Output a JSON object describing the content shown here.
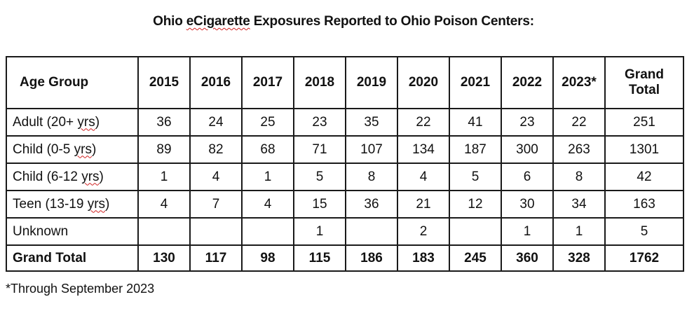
{
  "title": {
    "before": "Ohio ",
    "marked": "eCigarette",
    "after": " Exposures Reported to Ohio Poison Centers:"
  },
  "table": {
    "header": {
      "age_group": "Age Group",
      "years": [
        "2015",
        "2016",
        "2017",
        "2018",
        "2019",
        "2020",
        "2021",
        "2022",
        "2023*"
      ],
      "grand_total_line1": "Grand",
      "grand_total_line2": "Total"
    },
    "rows": [
      {
        "label_before": "Adult (20+ ",
        "label_marked": "yrs",
        "label_after": ")",
        "values": [
          "36",
          "24",
          "25",
          "23",
          "35",
          "22",
          "41",
          "23",
          "22"
        ],
        "total": "251"
      },
      {
        "label_before": "Child (0-5 ",
        "label_marked": "yrs",
        "label_after": ")",
        "values": [
          "89",
          "82",
          "68",
          "71",
          "107",
          "134",
          "187",
          "300",
          "263"
        ],
        "total": "1301"
      },
      {
        "label_before": "Child (6-12 ",
        "label_marked": "yrs",
        "label_after": ")",
        "values": [
          "1",
          "4",
          "1",
          "5",
          "8",
          "4",
          "5",
          "6",
          "8"
        ],
        "total": "42"
      },
      {
        "label_before": "Teen (13-19 ",
        "label_marked": "yrs",
        "label_after": ")",
        "values": [
          "4",
          "7",
          "4",
          "15",
          "36",
          "21",
          "12",
          "30",
          "34"
        ],
        "total": "163"
      },
      {
        "label_before": "Unknown",
        "label_marked": "",
        "label_after": "",
        "values": [
          "",
          "",
          "",
          "1",
          "",
          "2",
          "",
          "1",
          "1"
        ],
        "total": "5"
      }
    ],
    "grand_total_row": {
      "label": "Grand Total",
      "values": [
        "130",
        "117",
        "98",
        "115",
        "186",
        "183",
        "245",
        "360",
        "328"
      ],
      "total": "1762"
    }
  },
  "footnote": "*Through September 2023",
  "colors": {
    "text": "#111111",
    "border": "#1a1a1a",
    "spellcheck_underline": "#d02020"
  }
}
